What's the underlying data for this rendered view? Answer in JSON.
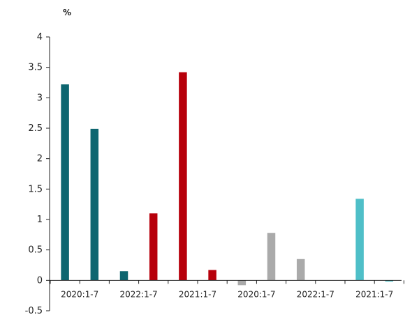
{
  "chart_data": {
    "type": "bar",
    "title": "",
    "xlabel": "",
    "ylabel": "",
    "unit_label": "%",
    "ylim": [
      -0.5,
      4
    ],
    "yticks": [
      "4",
      "3.5",
      "3",
      "2.5",
      "2",
      "1.5",
      "1",
      "0.5",
      "0",
      "-0.5"
    ],
    "ytick_values": [
      4,
      3.5,
      3,
      2.5,
      2,
      1.5,
      1,
      0.5,
      0,
      -0.5
    ],
    "categories": [
      "2020:1-7",
      "",
      "2022:1-7",
      "",
      "2021:1-7",
      "",
      "2020:1-7",
      "",
      "2022:1-7",
      "",
      "2021:1-7",
      ""
    ],
    "values": [
      3.22,
      2.49,
      0.15,
      1.1,
      3.42,
      0.17,
      -0.08,
      0.78,
      0.35,
      0.0,
      1.34,
      -0.02
    ],
    "bar_colors": [
      "#0e6670",
      "#0e6670",
      "#0e6670",
      "#b7000b",
      "#b7000b",
      "#b7000b",
      "#aaaaaa",
      "#aaaaaa",
      "#aaaaaa",
      "#4fbfc8",
      "#4fbfc8",
      "#4fbfc8"
    ],
    "grid": false,
    "legend": "none"
  }
}
